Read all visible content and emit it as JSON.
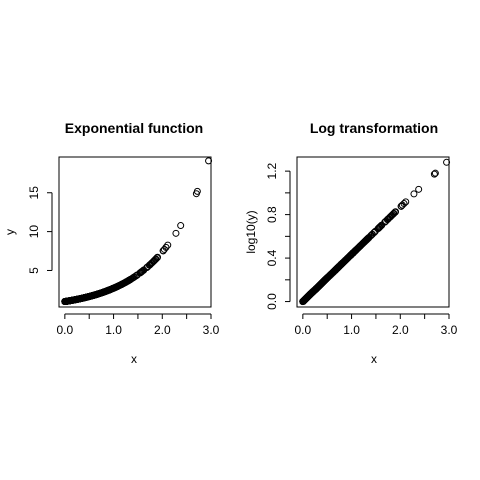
{
  "chart_data": [
    {
      "type": "scatter",
      "title": "Exponential function",
      "xlabel": "x",
      "ylabel": "y",
      "xlim": [
        -0.12,
        3.0
      ],
      "ylim": [
        0.3,
        19.6
      ],
      "xticks": [
        0.0,
        1.0,
        2.0,
        3.0
      ],
      "xtick_labels": [
        "0.0",
        "1.0",
        "2.0",
        "3.0"
      ],
      "yticks": [
        5,
        10,
        15
      ],
      "ytick_labels": [
        "5",
        "10",
        "15"
      ],
      "function": "exp",
      "x_range": [
        0.0,
        2.95
      ],
      "marker": "open-circle",
      "grid": false,
      "legend": "none"
    },
    {
      "type": "scatter",
      "title": "Log transformation",
      "xlabel": "x",
      "ylabel": "log10(y)",
      "xlim": [
        -0.12,
        3.0
      ],
      "ylim": [
        -0.05,
        1.33
      ],
      "xticks": [
        0.0,
        1.0,
        2.0,
        3.0
      ],
      "xtick_labels": [
        "0.0",
        "1.0",
        "2.0",
        "3.0"
      ],
      "yticks": [
        0.0,
        0.4,
        0.8,
        1.2
      ],
      "ytick_labels": [
        "0.0",
        "0.4",
        "0.8",
        "1.2"
      ],
      "function": "log10exp",
      "x_range": [
        0.0,
        2.95
      ],
      "marker": "open-circle",
      "grid": false,
      "legend": "none"
    }
  ]
}
